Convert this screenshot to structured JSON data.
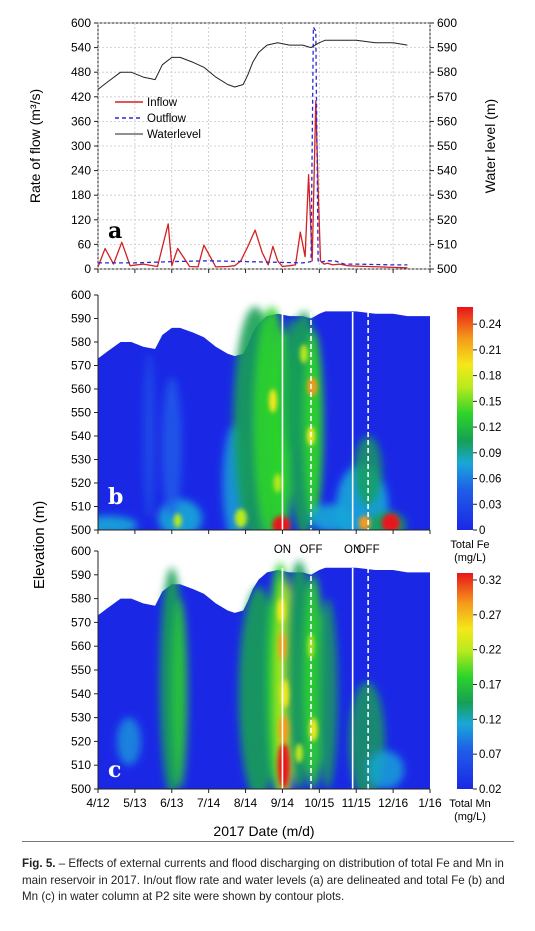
{
  "figure": {
    "caption_label": "Fig. 5.",
    "caption_text": " – Effects of external currents and flood discharging on distribution of total Fe and Mn in main reservoir in 2017. In/out flow rate and water levels (a) are delineated and total Fe (b) and Mn (c) in water column at P2 site were shown by contour plots."
  },
  "chart_data": [
    {
      "type": "line",
      "panel_label": "a",
      "x_ticks": [
        "4/12",
        "5/13",
        "6/13",
        "7/14",
        "8/14",
        "9/14",
        "10/15",
        "11/15",
        "12/16",
        "1/16"
      ],
      "xlabel": "2017 Date (m/d)",
      "ylabel_left": "Rate of flow (m³/s)",
      "ylabel_right": "Water level (m)",
      "ylim_left": [
        0,
        600
      ],
      "yticks_left": [
        "0",
        "60",
        "120",
        "180",
        "240",
        "300",
        "360",
        "420",
        "480",
        "540",
        "600"
      ],
      "ylim_right": [
        500,
        600
      ],
      "yticks_right": [
        "500",
        "510",
        "520",
        "530",
        "540",
        "550",
        "560",
        "570",
        "580",
        "590",
        "600"
      ],
      "grid": true,
      "legend_position": "top-left",
      "series": [
        {
          "name": "Inflow",
          "color": "#d42020",
          "style": "solid",
          "axis": "left",
          "x": [
            "4/12",
            "4/18",
            "4/25",
            "5/2",
            "5/9",
            "5/20",
            "6/1",
            "6/10",
            "6/13",
            "6/18",
            "6/28",
            "7/5",
            "7/10",
            "7/20",
            "7/30",
            "8/5",
            "8/10",
            "8/16",
            "8/22",
            "8/28",
            "9/2",
            "9/6",
            "9/10",
            "9/14",
            "9/20",
            "9/25",
            "9/29",
            "10/3",
            "10/6",
            "10/9",
            "10/12",
            "10/14",
            "10/16",
            "10/19",
            "10/22",
            "10/26",
            "11/1",
            "11/8",
            "11/15",
            "11/25",
            "12/5",
            "12/16",
            "12/28"
          ],
          "values": [
            5,
            50,
            12,
            65,
            8,
            12,
            6,
            110,
            8,
            50,
            6,
            5,
            58,
            5,
            6,
            8,
            20,
            55,
            95,
            40,
            10,
            55,
            20,
            6,
            8,
            10,
            90,
            30,
            230,
            20,
            410,
            200,
            20,
            12,
            14,
            10,
            12,
            8,
            7,
            6,
            5,
            4,
            3
          ]
        },
        {
          "name": "Outflow",
          "color": "#2a2ad0",
          "style": "dashed",
          "axis": "left",
          "x": [
            "4/12",
            "5/13",
            "6/13",
            "7/14",
            "8/14",
            "9/14",
            "10/1",
            "10/8",
            "10/10",
            "10/12",
            "10/14",
            "10/16",
            "10/18",
            "10/22",
            "10/28",
            "11/5",
            "11/15",
            "12/16",
            "12/28"
          ],
          "values": [
            15,
            15,
            18,
            20,
            18,
            16,
            15,
            18,
            590,
            580,
            20,
            15,
            18,
            20,
            20,
            12,
            12,
            10,
            10
          ]
        },
        {
          "name": "Waterlevel",
          "color": "#222222",
          "style": "solid",
          "axis": "right",
          "x": [
            "4/12",
            "4/20",
            "5/1",
            "5/10",
            "5/20",
            "5/30",
            "6/5",
            "6/13",
            "6/20",
            "7/1",
            "7/10",
            "7/20",
            "7/30",
            "8/5",
            "8/12",
            "8/16",
            "8/20",
            "8/25",
            "9/1",
            "9/10",
            "9/20",
            "10/1",
            "10/8",
            "10/15",
            "10/20",
            "11/1",
            "11/15",
            "12/1",
            "12/16",
            "12/28"
          ],
          "values": [
            573,
            576,
            580,
            580,
            578,
            577,
            583,
            586,
            586,
            584,
            582,
            578,
            575,
            574,
            575,
            579,
            584,
            588,
            591,
            592,
            591,
            591,
            590,
            592,
            593,
            593,
            593,
            592,
            592,
            591
          ]
        }
      ]
    },
    {
      "type": "heatmap",
      "panel_label": "b",
      "x_ticks": [
        "4/12",
        "5/13",
        "6/13",
        "7/14",
        "8/14",
        "9/14",
        "10/15",
        "11/15",
        "12/16",
        "1/16"
      ],
      "ylabel": "Elevation (m)",
      "ylim": [
        500,
        600
      ],
      "yticks": [
        "500",
        "510",
        "520",
        "530",
        "540",
        "550",
        "560",
        "570",
        "580",
        "590",
        "600"
      ],
      "colorbar_title": "Total Fe",
      "colorbar_units": "(mg/L)",
      "colorbar_ticks": [
        "0",
        "0.03",
        "0.06",
        "0.09",
        "0.12",
        "0.15",
        "0.18",
        "0.21",
        "0.24"
      ],
      "colorbar_range": [
        0,
        0.26
      ],
      "event_markers": [
        {
          "label": "ON",
          "x": "9/14",
          "style": "solid"
        },
        {
          "label": "OFF",
          "x": "10/8",
          "style": "dashed"
        },
        {
          "label": "ON",
          "x": "11/12",
          "style": "solid"
        },
        {
          "label": "OFF",
          "x": "11/25",
          "style": "dashed"
        }
      ]
    },
    {
      "type": "heatmap",
      "panel_label": "c",
      "x_ticks": [
        "4/12",
        "5/13",
        "6/13",
        "7/14",
        "8/14",
        "9/14",
        "10/15",
        "11/15",
        "12/16",
        "1/16"
      ],
      "xlabel": "2017 Date (m/d)",
      "ylim": [
        500,
        600
      ],
      "yticks": [
        "500",
        "510",
        "520",
        "530",
        "540",
        "550",
        "560",
        "570",
        "580",
        "590",
        "600"
      ],
      "colorbar_title": "Total Mn",
      "colorbar_units": "(mg/L)",
      "colorbar_ticks": [
        "0.02",
        "0.07",
        "0.12",
        "0.17",
        "0.22",
        "0.27",
        "0.32"
      ],
      "colorbar_range": [
        0.02,
        0.33
      ]
    }
  ]
}
